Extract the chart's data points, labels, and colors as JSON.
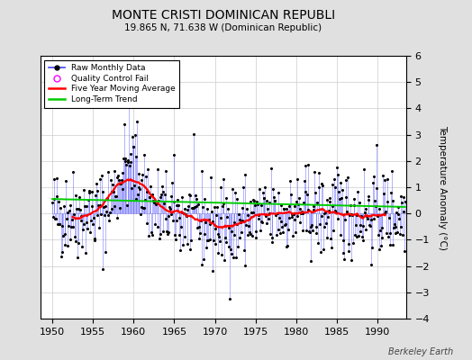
{
  "title": "MONTE CRISTI DOMINICAN REPUBLI",
  "subtitle": "19.865 N, 71.638 W (Dominican Republic)",
  "ylabel": "Temperature Anomaly (°C)",
  "watermark": "Berkeley Earth",
  "start_year": 1950,
  "end_year": 1993,
  "xlim": [
    1948.5,
    1993.5
  ],
  "ylim": [
    -4,
    6
  ],
  "yticks": [
    -4,
    -3,
    -2,
    -1,
    0,
    1,
    2,
    3,
    4,
    5,
    6
  ],
  "xticks": [
    1950,
    1955,
    1960,
    1965,
    1970,
    1975,
    1980,
    1985,
    1990
  ],
  "bg_color": "#e0e0e0",
  "plot_bg_color": "#ffffff",
  "raw_color": "#4444ff",
  "moving_avg_color": "#ff0000",
  "trend_color": "#00cc00",
  "qc_color": "#ff00ff",
  "grid_color": "#cccccc"
}
